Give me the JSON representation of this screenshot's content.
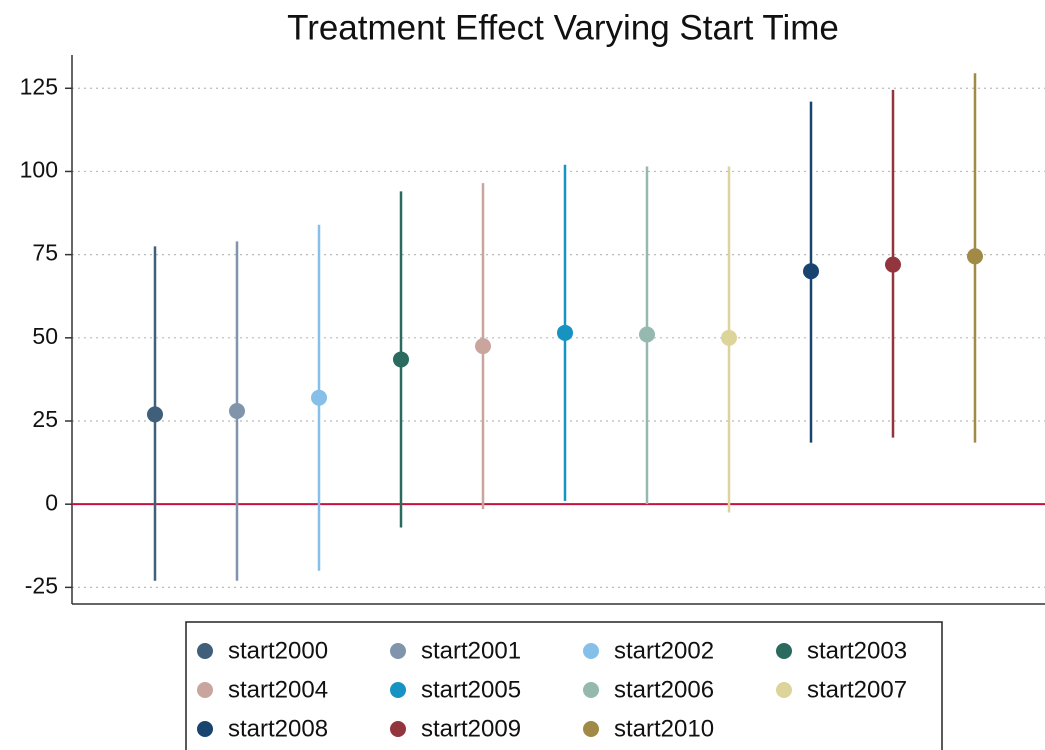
{
  "chart_data": {
    "type": "dot-whisker",
    "title": "Treatment Effect Varying Start Time",
    "series": [
      {
        "name": "start2000",
        "color": "#3f5f7a",
        "estimate": 27,
        "lower": -23,
        "upper": 77.5
      },
      {
        "name": "start2001",
        "color": "#8095ab",
        "estimate": 28,
        "lower": -23,
        "upper": 79
      },
      {
        "name": "start2002",
        "color": "#86c0e8",
        "estimate": 32,
        "lower": -20,
        "upper": 84
      },
      {
        "name": "start2003",
        "color": "#2b6a5e",
        "estimate": 43.5,
        "lower": -7,
        "upper": 94
      },
      {
        "name": "start2004",
        "color": "#c9a59e",
        "estimate": 47.5,
        "lower": -1.5,
        "upper": 96.5
      },
      {
        "name": "start2005",
        "color": "#1793c3",
        "estimate": 51.5,
        "lower": 1,
        "upper": 102
      },
      {
        "name": "start2006",
        "color": "#95b9ae",
        "estimate": 51,
        "lower": 0,
        "upper": 101.5
      },
      {
        "name": "start2007",
        "color": "#ddd49b",
        "estimate": 50,
        "lower": -2.5,
        "upper": 101.5
      },
      {
        "name": "start2008",
        "color": "#1a4470",
        "estimate": 70,
        "lower": 18.5,
        "upper": 121
      },
      {
        "name": "start2009",
        "color": "#93353d",
        "estimate": 72,
        "lower": 20,
        "upper": 124.5
      },
      {
        "name": "start2010",
        "color": "#a08a46",
        "estimate": 74.5,
        "lower": 18.5,
        "upper": 129.5
      }
    ],
    "ylim": [
      -30,
      135
    ],
    "yticks": [
      -25,
      0,
      25,
      50,
      75,
      100,
      125
    ],
    "grid": true,
    "reference_line": {
      "value": 0,
      "color": "#c8103e"
    },
    "legend": "bottom"
  }
}
